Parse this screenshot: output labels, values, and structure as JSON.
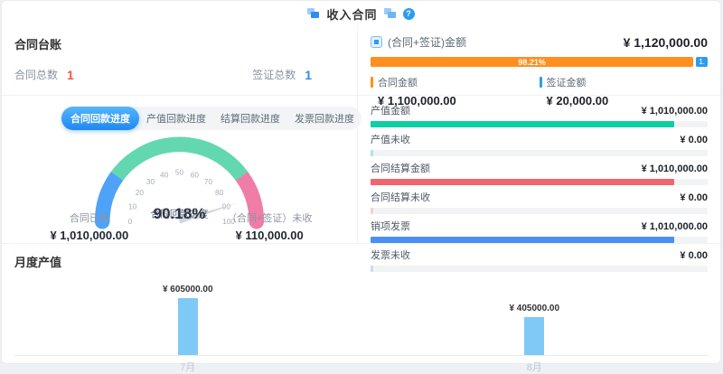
{
  "header": {
    "title": "收入合同",
    "help_glyph": "?"
  },
  "ledger": {
    "title": "合同台账",
    "stats": [
      {
        "label": "合同总数",
        "value": "1",
        "color": "#f25643"
      },
      {
        "label": "签证总数",
        "value": "1",
        "color": "#2d8cf0"
      }
    ]
  },
  "tabs": [
    {
      "label": "合同回款进度",
      "active": true
    },
    {
      "label": "产值回款进度",
      "active": false
    },
    {
      "label": "结算回款进度",
      "active": false
    },
    {
      "label": "发票回款进度",
      "active": false
    }
  ],
  "left_panel": {
    "stats": [
      {
        "label": "合同已收",
        "value": "¥ 1,010,000.00"
      },
      {
        "label": "（合同+签证）未收",
        "value": "¥ 110,000.00"
      }
    ]
  },
  "right_panel": {
    "header": {
      "label": "(合同+签证)金额",
      "value": "¥ 1,120,000.00"
    },
    "split_bar": {
      "left_percent": 98.21,
      "left_percent_text": "98.21%",
      "left_color": "#ff8f1f",
      "right_text": "1.",
      "right_color": "#2d9cf0"
    },
    "legend": [
      {
        "label": "合同金额",
        "value": "¥ 1,100,000.00",
        "color": "#ff8f1f"
      },
      {
        "label": "签证金额",
        "value": "¥ 20,000.00",
        "color": "#2d9cf0"
      }
    ],
    "rows": [
      {
        "label": "产值金额",
        "value": "¥ 1,010,000.00",
        "percent": 90.18,
        "color": "#0ecfa3"
      },
      {
        "label": "产值未收",
        "value": "¥ 0.00",
        "percent": 0.9,
        "color": "#a9ead9"
      },
      {
        "label": "合同结算金额",
        "value": "¥ 1,010,000.00",
        "percent": 90.18,
        "color": "#f2646e"
      },
      {
        "label": "合同结算未收",
        "value": "¥ 0.00",
        "percent": 0.9,
        "color": "#f8cdd1"
      },
      {
        "label": "销项发票",
        "value": "¥ 1,010,000.00",
        "percent": 90.18,
        "color": "#4b8ff5"
      },
      {
        "label": "发票未收",
        "value": "¥ 0.00",
        "percent": 0.9,
        "color": "#c6dbf9"
      }
    ]
  },
  "chart_data": [
    {
      "type": "gauge",
      "title": "合同回款进度",
      "value": 90.18,
      "value_text": "90.18%",
      "min": 0,
      "max": 100,
      "tick_step": 10,
      "tick_color": "#a6adba",
      "needle_color": "#d3d7de",
      "segments": [
        {
          "from": 0,
          "to": 20,
          "color": "#4ea3f8"
        },
        {
          "from": 20,
          "to": 80,
          "color": "#63d8b0"
        },
        {
          "from": 80,
          "to": 100,
          "color": "#f07ca8"
        }
      ]
    },
    {
      "type": "bar",
      "title": "月度产值",
      "categories": [
        "7月",
        "8月"
      ],
      "values": [
        605000,
        405000
      ],
      "labels": [
        "¥ 605000.00",
        "¥ 405000.00"
      ],
      "bar_color": "#7fc9f7",
      "ylim": [
        0,
        605000
      ],
      "legend_position": "none",
      "grid": false
    }
  ]
}
